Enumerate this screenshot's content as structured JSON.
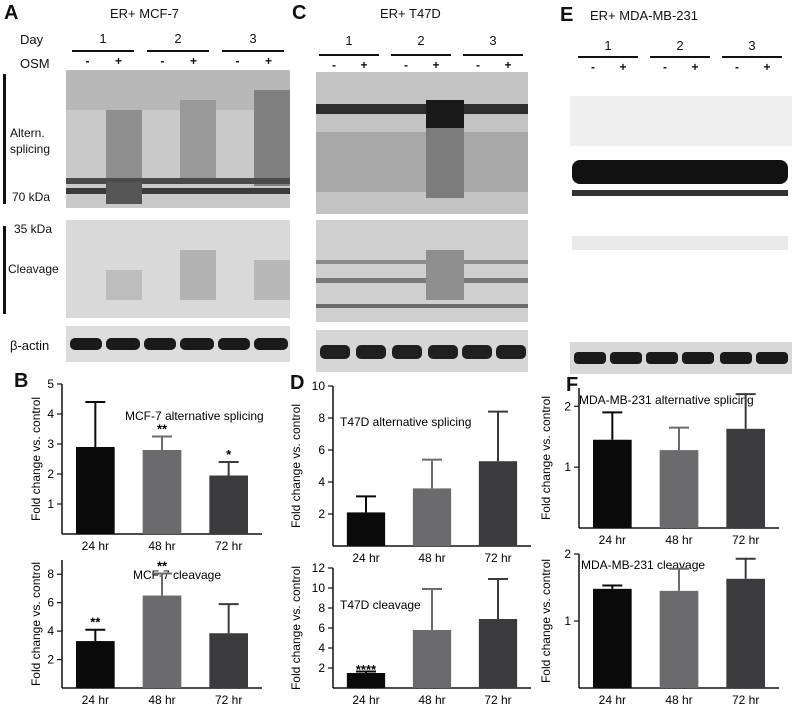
{
  "figure": {
    "panels": {
      "A": {
        "letter": "A",
        "title": "ER+ MCF-7",
        "day_label": "Day",
        "osm_label": "OSM",
        "days": [
          "1",
          "2",
          "3"
        ],
        "signs": [
          "-",
          "+",
          "-",
          "+",
          "-",
          "+"
        ],
        "alt_label": "Altern.\nsplicing",
        "kda70": "70 kDa",
        "kda35": "35 kDa",
        "cleavage_label": "Cleavage",
        "actin_label": "β-actin"
      },
      "C": {
        "letter": "C",
        "title": "ER+ T47D",
        "days": [
          "1",
          "2",
          "3"
        ],
        "signs": [
          "-",
          "+",
          "-",
          "+",
          "-",
          "+"
        ]
      },
      "E": {
        "letter": "E",
        "title": "ER+ MDA-MB-231",
        "days": [
          "1",
          "2",
          "3"
        ],
        "signs": [
          "-",
          "+",
          "-",
          "+",
          "-",
          "+"
        ]
      },
      "B": {
        "letter": "B"
      },
      "D": {
        "letter": "D"
      },
      "F": {
        "letter": "F"
      }
    },
    "colors": {
      "bar1": "#0a0a0a",
      "bar2": "#6b6b6e",
      "bar3": "#3b3b3d"
    }
  },
  "chart_data": [
    {
      "id": "B-top",
      "type": "bar",
      "title": "MCF-7 alternative splicing",
      "ylabel": "Fold change vs. control",
      "categories": [
        "24 hr",
        "48 hr",
        "72 hr"
      ],
      "values": [
        2.9,
        2.8,
        1.95
      ],
      "errors": [
        1.5,
        0.45,
        0.45
      ],
      "sig": [
        "",
        "**",
        "*"
      ],
      "ylim": [
        0,
        5
      ],
      "yticks": [
        1,
        2,
        3,
        4,
        5
      ],
      "ytick_labels": [
        "1",
        "2",
        "3",
        "4",
        "5"
      ]
    },
    {
      "id": "B-bottom",
      "type": "bar",
      "title": "MCF-7 cleavage",
      "ylabel": "Fold change vs. control",
      "categories": [
        "24 hr",
        "48 hr",
        "72 hr"
      ],
      "values": [
        3.3,
        6.5,
        3.85
      ],
      "errors": [
        0.8,
        1.55,
        2.05
      ],
      "sig": [
        "**",
        "**",
        ""
      ],
      "ylim": [
        0,
        9
      ],
      "yticks": [
        2,
        4,
        6,
        8
      ],
      "ytick_labels": [
        "2",
        "4",
        "6",
        "8"
      ]
    },
    {
      "id": "D-top",
      "type": "bar",
      "title": "T47D alternative splicing",
      "ylabel": "Fold change vs. control",
      "categories": [
        "24 hr",
        "48 hr",
        "72 hr"
      ],
      "values": [
        2.1,
        3.6,
        5.3
      ],
      "errors": [
        1.0,
        1.8,
        3.1
      ],
      "sig": [
        "",
        "",
        ""
      ],
      "ylim": [
        0,
        10
      ],
      "yticks": [
        2,
        4,
        6,
        8,
        10
      ],
      "ytick_labels": [
        "2",
        "4",
        "6",
        "8",
        "10"
      ]
    },
    {
      "id": "D-bottom",
      "type": "bar",
      "title": "T47D cleavage",
      "ylabel": "Fold change vs. control",
      "categories": [
        "24 hr",
        "48 hr",
        "72 hr"
      ],
      "values": [
        1.5,
        5.8,
        6.9
      ],
      "errors": [
        0.15,
        4.1,
        4.0
      ],
      "sig": [
        "****",
        "",
        ""
      ],
      "ylim": [
        0,
        12
      ],
      "yticks": [
        2,
        4,
        6,
        8,
        10,
        12
      ],
      "ytick_labels": [
        "2",
        "4",
        "6",
        "8",
        "10",
        "12"
      ]
    },
    {
      "id": "F-top",
      "type": "bar",
      "title": "MDA-MB-231 alternative splicing",
      "ylabel": "Fold change vs. control",
      "categories": [
        "24 hr",
        "48 hr",
        "72 hr"
      ],
      "values": [
        1.45,
        1.28,
        1.63
      ],
      "errors": [
        0.45,
        0.37,
        0.57
      ],
      "sig": [
        "",
        "",
        ""
      ],
      "ylim": [
        0,
        2.3
      ],
      "yticks": [
        1,
        2
      ],
      "ytick_labels": [
        "1",
        "2"
      ]
    },
    {
      "id": "F-bottom",
      "type": "bar",
      "title": "MDA-MB-231 cleavage",
      "ylabel": "Fold change vs. control",
      "categories": [
        "24 hr",
        "48 hr",
        "72 hr"
      ],
      "values": [
        1.48,
        1.45,
        1.63
      ],
      "errors": [
        0.05,
        0.33,
        0.3
      ],
      "sig": [
        "",
        "",
        ""
      ],
      "ylim": [
        0,
        2
      ],
      "yticks": [
        1,
        2
      ],
      "ytick_labels": [
        "1",
        "2"
      ]
    }
  ]
}
